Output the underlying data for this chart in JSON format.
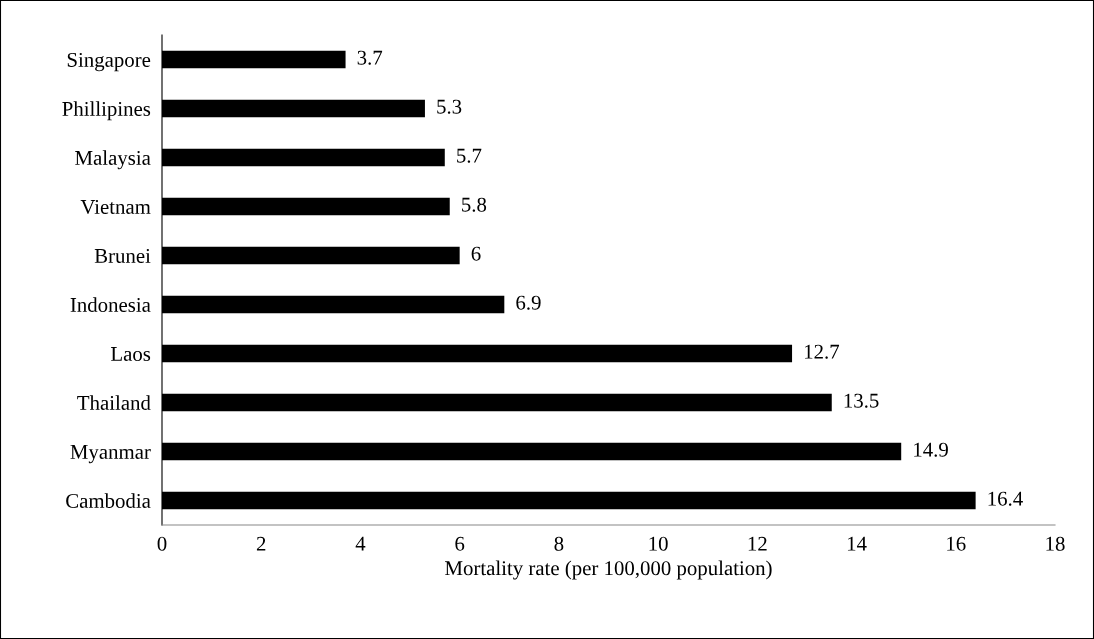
{
  "chart_data": {
    "type": "bar",
    "orientation": "horizontal",
    "xlabel": "Mortality rate (per 100,000 population)",
    "categories": [
      "Singapore",
      "Phillipines",
      "Malaysia",
      "Vietnam",
      "Brunei",
      "Indonesia",
      "Laos",
      "Thailand",
      "Myanmar",
      "Cambodia"
    ],
    "values": [
      3.7,
      5.3,
      5.7,
      5.8,
      6,
      6.9,
      12.7,
      13.5,
      14.9,
      16.4
    ],
    "color": "#000000",
    "xlim": [
      0,
      18
    ],
    "xticks": [
      0,
      2,
      4,
      6,
      8,
      10,
      12,
      14,
      16,
      18
    ],
    "data_labels": true,
    "grid": false,
    "legend": false
  }
}
